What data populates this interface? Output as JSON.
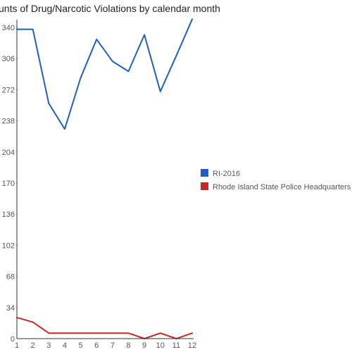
{
  "chart_data": {
    "type": "line",
    "title": "unts of Drug/Narcotic Violations by calendar month",
    "xlabel": "",
    "ylabel": "",
    "x": [
      1,
      2,
      3,
      4,
      5,
      6,
      7,
      8,
      9,
      10,
      11,
      12
    ],
    "x_tick_labels": [
      "1",
      "2",
      "3",
      "4",
      "5",
      "6",
      "7",
      "8",
      "9",
      "10",
      "11",
      "12"
    ],
    "y_tick_labels": [
      "0",
      "34",
      "68",
      "102",
      "136",
      "170",
      "204",
      "238",
      "272",
      "306",
      "340"
    ],
    "ylim": [
      0,
      340
    ],
    "grid": false,
    "legend_position": "right",
    "series": [
      {
        "name": "RI-2016",
        "color": "#1f5fbd",
        "values": [
          338,
          338,
          257,
          229,
          285,
          327,
          303,
          292,
          332,
          270,
          309,
          349
        ]
      },
      {
        "name": "Rhode Island State Police Headquarters",
        "color": "#c62828",
        "values": [
          23,
          18,
          6,
          6,
          6,
          6,
          6,
          6,
          0,
          6,
          0,
          6
        ]
      }
    ]
  }
}
